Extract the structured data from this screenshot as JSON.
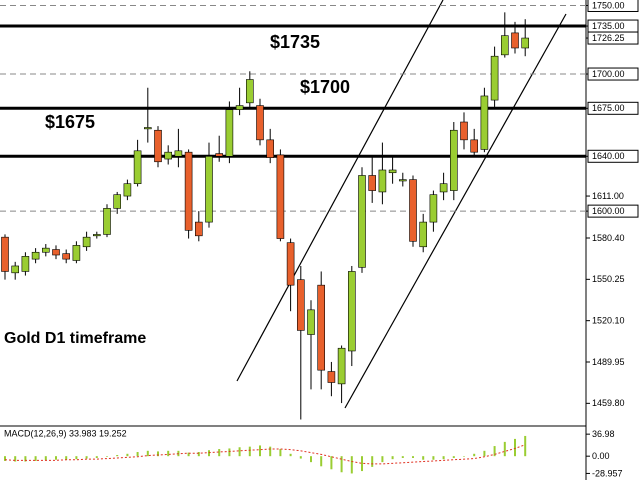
{
  "chart_data": [
    {
      "type": "candlestick",
      "title": "Gold D1 timeframe",
      "open": [
        1581,
        1555,
        1556,
        1565,
        1570,
        1572,
        1569,
        1564,
        1574,
        1582,
        1583,
        1602,
        1611,
        1620,
        1660,
        1659,
        1638,
        1640,
        1643,
        1592,
        1592,
        1642,
        1640,
        1674,
        1679,
        1677,
        1652,
        1641,
        1577,
        1550,
        1510,
        1546,
        1483,
        1474,
        1498,
        1559,
        1626,
        1614,
        1628,
        1622,
        1623,
        1574,
        1592,
        1614,
        1615,
        1665,
        1652,
        1645,
        1681,
        1714,
        1730,
        1719
      ],
      "high": [
        1583,
        1563,
        1570,
        1573,
        1576,
        1575,
        1572,
        1578,
        1585,
        1585,
        1605,
        1614,
        1623,
        1652,
        1690,
        1662,
        1648,
        1660,
        1645,
        1600,
        1650,
        1655,
        1680,
        1690,
        1702,
        1682,
        1660,
        1645,
        1580,
        1560,
        1535,
        1556,
        1490,
        1502,
        1560,
        1632,
        1640,
        1650,
        1640,
        1628,
        1626,
        1598,
        1615,
        1628,
        1665,
        1672,
        1660,
        1690,
        1720,
        1745,
        1738,
        1740
      ],
      "low": [
        1550,
        1550,
        1553,
        1562,
        1567,
        1565,
        1562,
        1562,
        1571,
        1580,
        1581,
        1598,
        1608,
        1618,
        1650,
        1632,
        1634,
        1632,
        1580,
        1578,
        1588,
        1636,
        1635,
        1670,
        1676,
        1648,
        1635,
        1578,
        1527,
        1448,
        1470,
        1470,
        1465,
        1460,
        1487,
        1555,
        1606,
        1605,
        1620,
        1618,
        1574,
        1570,
        1585,
        1608,
        1608,
        1645,
        1640,
        1643,
        1676,
        1712,
        1715,
        1713
      ],
      "close": [
        1556,
        1560,
        1567,
        1570,
        1573,
        1568,
        1565,
        1575,
        1581,
        1583,
        1602,
        1612,
        1620,
        1644,
        1661,
        1636,
        1643,
        1644,
        1586,
        1582,
        1640,
        1640,
        1674,
        1677,
        1696,
        1652,
        1639,
        1580,
        1546,
        1513,
        1528,
        1484,
        1475,
        1500,
        1556,
        1626,
        1615,
        1630,
        1630,
        1623,
        1578,
        1592,
        1612,
        1620,
        1659,
        1652,
        1643,
        1684,
        1713,
        1728,
        1719,
        1726.25
      ],
      "up_color": "#9acd32",
      "down_color": "#e8602c",
      "ylim": [
        1444,
        1754
      ],
      "yticks": [
        {
          "value": 1750,
          "label": "1750.00"
        },
        {
          "value": 1735,
          "label": "1735.00"
        },
        1726.25,
        {
          "value": 1700,
          "label": "1700.00"
        },
        {
          "value": 1675,
          "label": "1675.00"
        },
        {
          "value": 1640,
          "label": "1640.00"
        },
        {
          "value": 1611,
          "label": "1611.00"
        },
        {
          "value": 1600,
          "label": "1600.00"
        },
        {
          "value": 1580.4,
          "label": "1580.40"
        },
        1550.25,
        {
          "value": 1520.1,
          "label": "1520.10"
        },
        1489.95,
        {
          "value": 1459.8,
          "label": "1459.80"
        }
      ],
      "levels": [
        {
          "value": 1750,
          "style": "dashed"
        },
        {
          "value": 1735,
          "style": "solid"
        },
        {
          "value": 1700,
          "style": "dashed"
        },
        {
          "value": 1675,
          "style": "solid"
        },
        {
          "value": 1640,
          "style": "solid"
        },
        {
          "value": 1600,
          "style": "dashed"
        }
      ],
      "annotations": [
        "$1735",
        "$1700",
        "$1675"
      ]
    },
    {
      "type": "macd",
      "label": "MACD(12,26,9) 33.983 19.252",
      "values": [
        -8,
        -9,
        -9,
        -8,
        -7,
        -6,
        -6,
        -5,
        -4,
        -3,
        -1,
        2,
        4,
        7,
        9,
        8,
        9,
        9,
        6,
        7,
        10,
        12,
        13,
        15,
        16,
        18,
        16,
        12,
        4,
        -4,
        -10,
        -17,
        -22,
        -27,
        -29,
        -25,
        -18,
        -10,
        -5,
        -3,
        -3,
        -6,
        -6,
        -5,
        -3,
        0,
        4,
        9,
        17,
        24,
        29,
        33.983
      ],
      "signal": [
        -6,
        -7,
        -7,
        -7,
        -7,
        -7,
        -6,
        -6,
        -5,
        -5,
        -4,
        -3,
        -2,
        -1,
        1,
        2,
        3,
        4,
        5,
        5,
        6,
        7,
        8,
        9,
        10,
        11,
        12,
        12,
        11,
        9,
        6,
        3,
        -1,
        -5,
        -9,
        -12,
        -13,
        -13,
        -12,
        -11,
        -10,
        -9,
        -8,
        -7,
        -6,
        -5,
        -4,
        -1,
        3,
        8,
        13,
        19.252
      ],
      "color": "#9acd32",
      "signal_color": "#e03020",
      "ylim": [
        -40,
        49
      ],
      "yticks": [
        36.98,
        {
          "value": 0,
          "label": "0.00"
        },
        -28.957
      ]
    }
  ]
}
